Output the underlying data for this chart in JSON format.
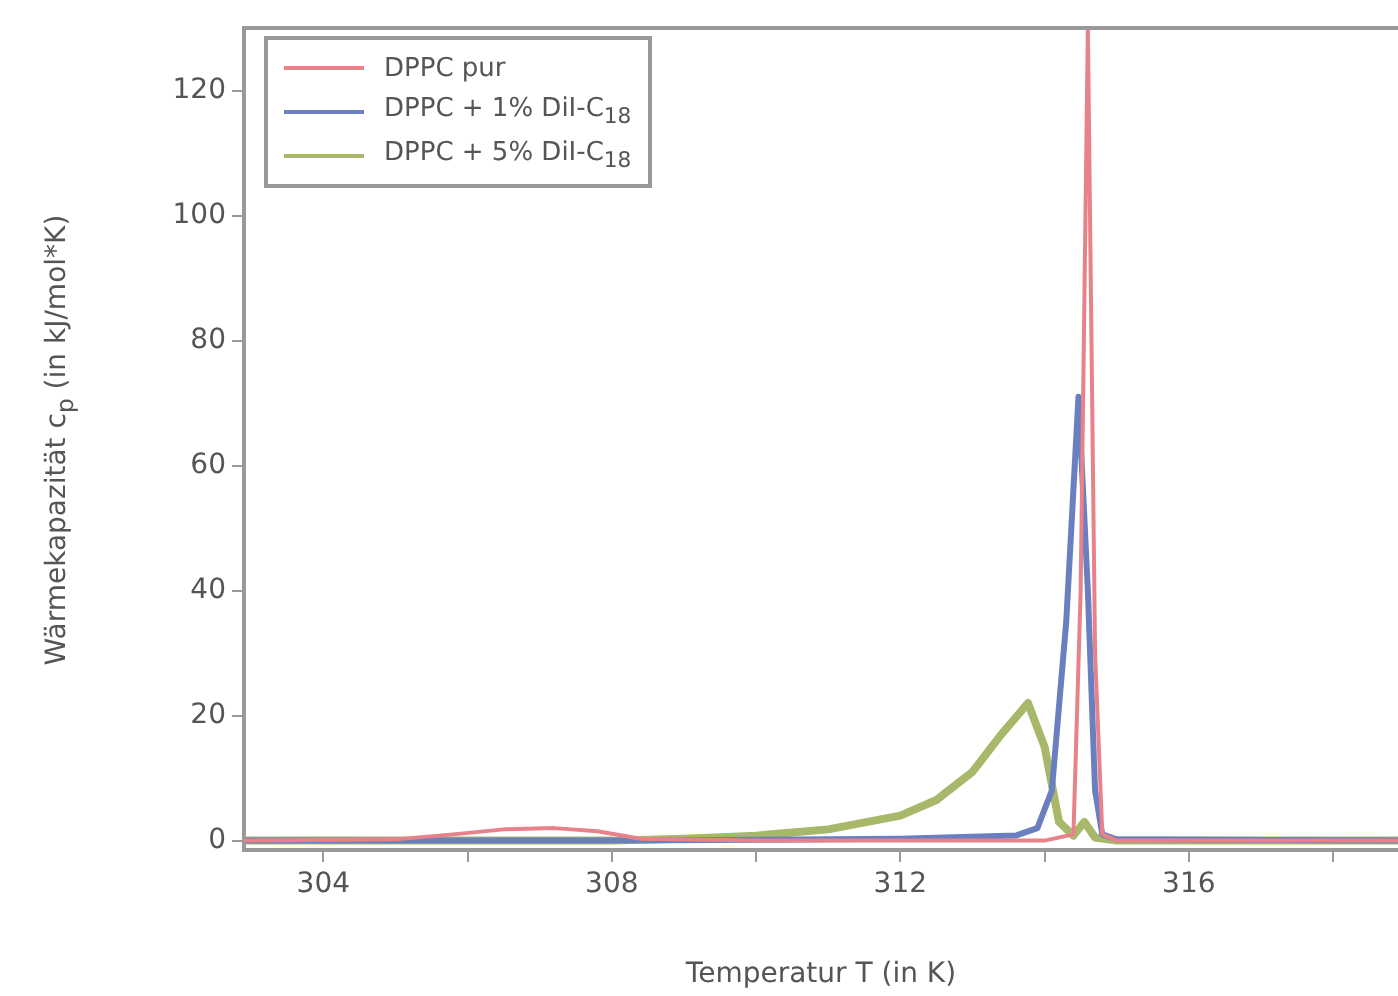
{
  "chart_data": {
    "type": "line",
    "xlabel": "Temperatur T (in K)",
    "ylabel": "Wärmekapazität c$_{p}$ (in kJ/mol*K)",
    "xlim": [
      302.9,
      318.9
    ],
    "ylim": [
      -1.5,
      130
    ],
    "xticks": [
      304,
      {
        "value": 306,
        "label": null
      },
      308,
      {
        "value": 310,
        "label": null
      },
      312,
      {
        "value": 314,
        "label": null
      },
      316,
      {
        "value": 318,
        "label": null
      }
    ],
    "yticks": [
      0,
      20,
      40,
      60,
      80,
      100,
      120
    ],
    "grid": false,
    "legend": "top left",
    "marker": "none",
    "line_style": "solid",
    "series": [
      {
        "name": "DPPC pur",
        "color": "#e8828a",
        "x": [
          302.9,
          305,
          305.8,
          306.5,
          307.2,
          307.8,
          308.4,
          310,
          312,
          314,
          314.4,
          314.5,
          314.6,
          314.7,
          314.8,
          315,
          318.9
        ],
        "values": [
          0,
          0.2,
          1,
          1.8,
          2,
          1.5,
          0.3,
          0,
          0,
          0,
          1,
          40,
          130,
          30,
          1,
          0,
          0
        ]
      },
      {
        "name": "DPPC + 1% DiI-C$_{18}$",
        "color": "#6a7fc0",
        "x": [
          302.9,
          308,
          312,
          313.6,
          313.9,
          314.1,
          314.3,
          314.47,
          314.6,
          314.7,
          314.8,
          315,
          318.9
        ],
        "values": [
          0,
          0,
          0.3,
          0.8,
          2,
          8,
          35,
          71,
          40,
          8,
          1,
          0.2,
          0
        ]
      },
      {
        "name": "DPPC + 5% DiI-C$_{18}$",
        "color": "#a8b86a",
        "x": [
          302.9,
          308,
          309,
          310,
          311,
          312,
          312.5,
          313,
          313.4,
          313.77,
          314,
          314.2,
          314.4,
          314.55,
          314.7,
          315,
          318.9
        ],
        "values": [
          0,
          0,
          0.3,
          0.8,
          1.8,
          4,
          6.5,
          11,
          17,
          22,
          15,
          3,
          0.8,
          3,
          0.5,
          0,
          0
        ]
      }
    ]
  }
}
